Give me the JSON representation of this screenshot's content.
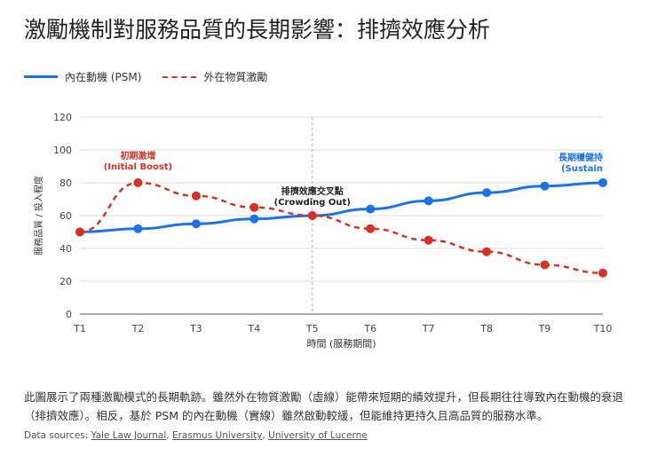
{
  "title": "激勵機制對服務品質的長期影響：排擠效應分析",
  "description": "此圖展示了兩種激勵模式的長期軌跡。雖然外在物質激勵（虛線）能帶來短期的績效提升，但長期往往導致內在動機的衰退（排擠效應）。相反，基於 PSM 的內在動機（實線）雖然啟動較緩，但能維持更持久且高品質的服務水準。",
  "sources": {
    "prefix": "Data sources: ",
    "links": [
      "Yale Law Journal",
      "Erasmus University",
      "University of Lucerne"
    ]
  },
  "chart_data": {
    "type": "line",
    "categories": [
      "T1",
      "T2",
      "T3",
      "T4",
      "T5",
      "T6",
      "T7",
      "T8",
      "T9",
      "T10"
    ],
    "series": [
      {
        "name": "內在動機 (PSM)",
        "values": [
          50,
          52,
          55,
          58,
          60,
          64,
          69,
          74,
          78,
          80
        ],
        "color": "#1a73e8",
        "style": "solid"
      },
      {
        "name": "外在物質激勵",
        "values": [
          50,
          80,
          72,
          65,
          60,
          52,
          45,
          38,
          30,
          25
        ],
        "color": "#d93025",
        "style": "dashed"
      }
    ],
    "xlabel": "時間 (服務期間)",
    "ylabel": "服務品質 / 投入程度",
    "ylim": [
      0,
      120
    ],
    "yticks": [
      0,
      20,
      40,
      60,
      80,
      100,
      120
    ],
    "grid": true,
    "legend": "top-left",
    "annotations": [
      {
        "text": [
          "初期激增",
          "(Initial Boost)"
        ],
        "x": "T2",
        "color": "#d93025"
      },
      {
        "text": [
          "排擠效應交叉點",
          "(Crowding Out)"
        ],
        "x": "T5",
        "color": "#222"
      },
      {
        "text": [
          "長期穩健持",
          "(Sustain"
        ],
        "x": "T10",
        "color": "#1a73e8"
      }
    ]
  }
}
